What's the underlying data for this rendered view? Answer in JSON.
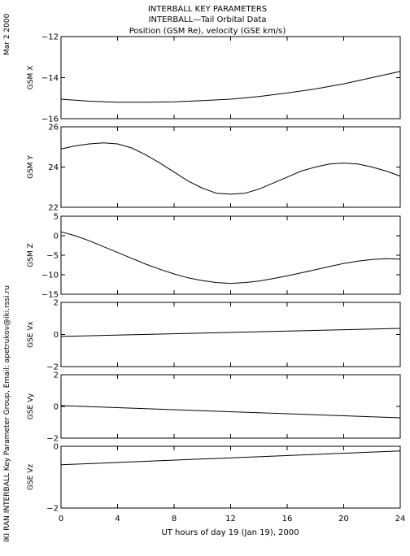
{
  "header": {
    "line1": "INTERBALL KEY PARAMETERS",
    "line2": "INTERBALL—Tail Orbital Data",
    "line3": "Position (GSM Re), velocity (GSE km/s)"
  },
  "side_date": "Mar  2 2000",
  "side_credit": "IKI RAN INTERBALL Key Parameter Group, Email: apetrukov@iki.rssi.ru",
  "chart_data": {
    "type": "line",
    "xlabel": "UT hours of day  19 (Jan 19), 2000",
    "xlim": [
      0,
      24
    ],
    "xticks": [
      0,
      4,
      8,
      12,
      16,
      20,
      24
    ],
    "xtick_labels": [
      "0",
      "4",
      "8",
      "12",
      "16",
      "20",
      "24"
    ],
    "panels": [
      {
        "ylabel": "GSM X",
        "ylim": [
          -16,
          -12
        ],
        "yticks": [
          -16,
          -14,
          -12
        ],
        "ytick_labels": [
          "−16",
          "−14",
          "−12"
        ],
        "x": [
          0,
          2,
          4,
          6,
          8,
          10,
          12,
          14,
          16,
          18,
          20,
          22,
          24
        ],
        "y": [
          -15.05,
          -15.15,
          -15.2,
          -15.2,
          -15.18,
          -15.12,
          -15.05,
          -14.92,
          -14.75,
          -14.55,
          -14.3,
          -14.0,
          -13.7
        ]
      },
      {
        "ylabel": "GSM Y",
        "ylim": [
          22,
          26
        ],
        "yticks": [
          22,
          24,
          26
        ],
        "ytick_labels": [
          "22",
          "24",
          "26"
        ],
        "x": [
          0,
          1,
          2,
          3,
          4,
          5,
          6,
          7,
          8,
          9,
          10,
          11,
          12,
          13,
          14,
          15,
          16,
          17,
          18,
          19,
          20,
          21,
          22,
          23,
          24
        ],
        "y": [
          24.9,
          25.05,
          25.15,
          25.2,
          25.15,
          24.95,
          24.6,
          24.2,
          23.75,
          23.3,
          22.95,
          22.7,
          22.65,
          22.7,
          22.9,
          23.2,
          23.5,
          23.8,
          24.0,
          24.15,
          24.2,
          24.15,
          24.0,
          23.8,
          23.55
        ]
      },
      {
        "ylabel": "GSM Z",
        "ylim": [
          -15,
          5
        ],
        "yticks": [
          -15,
          -10,
          -5,
          0,
          5
        ],
        "ytick_labels": [
          "−15",
          "−10",
          "−5",
          "0",
          "5"
        ],
        "x": [
          0,
          1,
          2,
          3,
          4,
          5,
          6,
          7,
          8,
          9,
          10,
          11,
          12,
          13,
          14,
          15,
          16,
          17,
          18,
          19,
          20,
          21,
          22,
          23,
          24
        ],
        "y": [
          1.0,
          0.0,
          -1.3,
          -2.8,
          -4.3,
          -5.8,
          -7.3,
          -8.6,
          -9.8,
          -10.8,
          -11.5,
          -12.0,
          -12.2,
          -12.0,
          -11.6,
          -11.0,
          -10.3,
          -9.5,
          -8.7,
          -7.9,
          -7.1,
          -6.5,
          -6.1,
          -5.9,
          -6.0
        ]
      },
      {
        "ylabel": "GSE Vx",
        "ylim": [
          -2,
          2
        ],
        "yticks": [
          -2,
          0,
          2
        ],
        "ytick_labels": [
          "−2",
          "0",
          "2"
        ],
        "x": [
          0,
          24
        ],
        "y": [
          -0.12,
          0.38
        ]
      },
      {
        "ylabel": "GSE Vy",
        "ylim": [
          -2,
          2
        ],
        "yticks": [
          -2,
          0,
          2
        ],
        "ytick_labels": [
          "−2",
          "0",
          "2"
        ],
        "x": [
          0,
          24
        ],
        "y": [
          0.05,
          -0.72
        ]
      },
      {
        "ylabel": "GSE Vz",
        "ylim": [
          -2,
          0
        ],
        "yticks": [
          -2,
          0
        ],
        "ytick_labels": [
          "−2",
          "0"
        ],
        "x": [
          0,
          24
        ],
        "y": [
          -0.6,
          -0.15
        ]
      }
    ]
  }
}
